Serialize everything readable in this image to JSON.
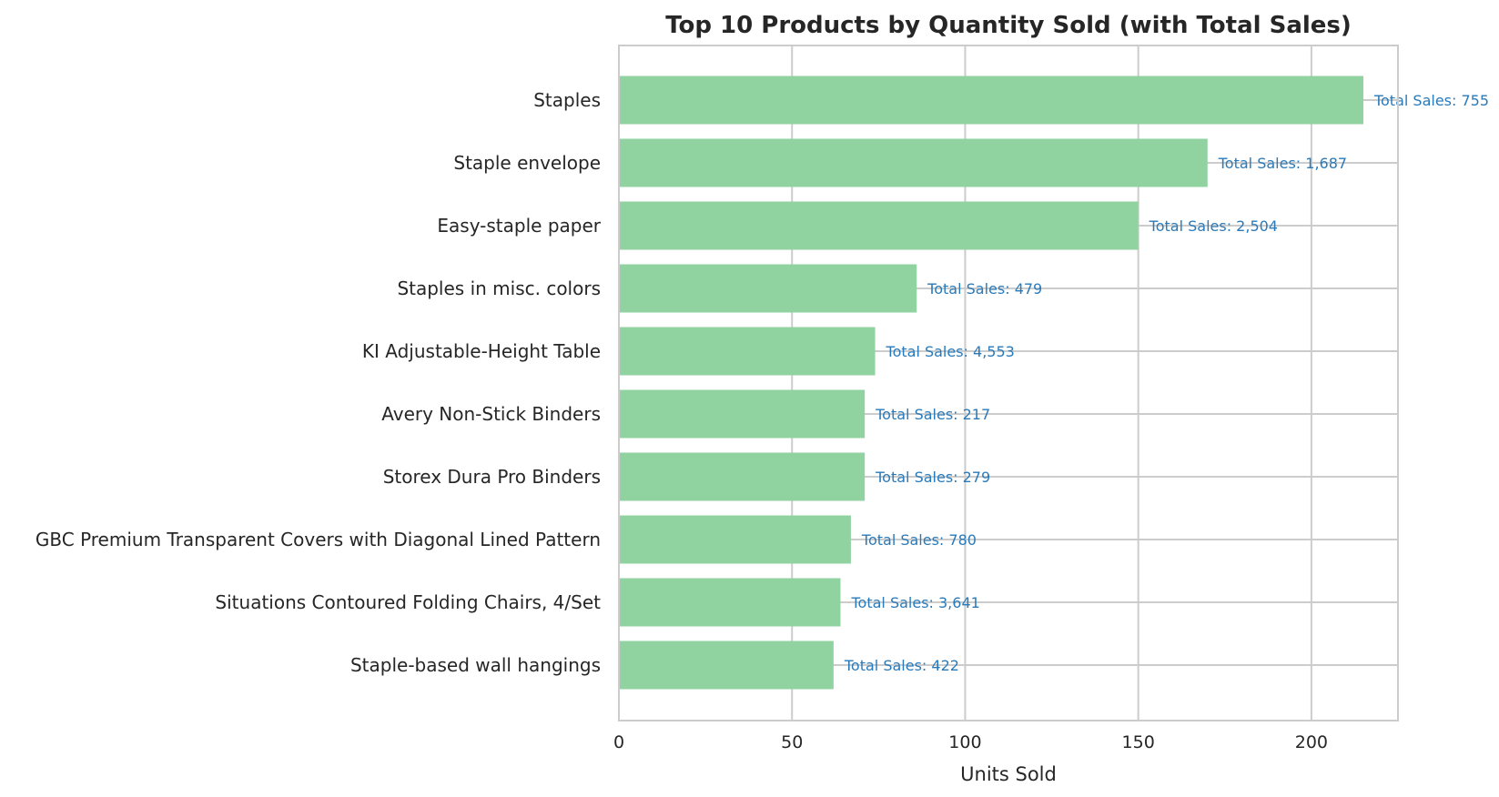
{
  "chart_data": {
    "type": "bar",
    "orientation": "horizontal",
    "title": "Top 10 Products by Quantity Sold (with Total Sales)",
    "xlabel": "Units Sold",
    "ylabel": "",
    "xlim": [
      0,
      225
    ],
    "xticks": [
      0,
      50,
      100,
      150,
      200
    ],
    "grid": true,
    "bar_color": "#90d2a0",
    "label_color": "#2a7ab9",
    "categories": [
      "Staples",
      "Staple envelope",
      "Easy-staple paper",
      "Staples in misc. colors",
      "KI Adjustable-Height Table",
      "Avery Non-Stick Binders",
      "Storex Dura Pro Binders",
      "GBC Premium Transparent Covers with Diagonal Lined Pattern",
      "Situations Contoured Folding Chairs, 4/Set",
      "Staple-based wall hangings"
    ],
    "values": [
      215,
      170,
      150,
      86,
      74,
      71,
      71,
      67,
      64,
      62
    ],
    "data_labels": [
      "Total Sales: 755",
      "Total Sales: 1,687",
      "Total Sales: 2,504",
      "Total Sales: 479",
      "Total Sales: 4,553",
      "Total Sales: 217",
      "Total Sales: 279",
      "Total Sales: 780",
      "Total Sales: 3,641",
      "Total Sales: 422"
    ]
  }
}
